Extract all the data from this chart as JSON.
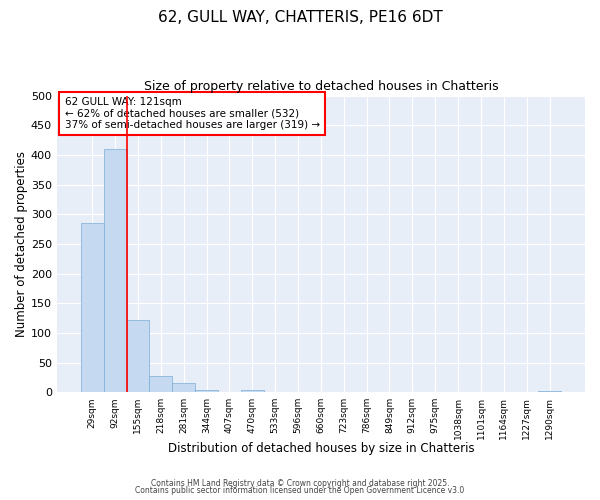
{
  "title": "62, GULL WAY, CHATTERIS, PE16 6DT",
  "subtitle": "Size of property relative to detached houses in Chatteris",
  "xlabel": "Distribution of detached houses by size in Chatteris",
  "ylabel": "Number of detached properties",
  "bar_labels": [
    "29sqm",
    "92sqm",
    "155sqm",
    "218sqm",
    "281sqm",
    "344sqm",
    "407sqm",
    "470sqm",
    "533sqm",
    "596sqm",
    "660sqm",
    "723sqm",
    "786sqm",
    "849sqm",
    "912sqm",
    "975sqm",
    "1038sqm",
    "1101sqm",
    "1164sqm",
    "1227sqm",
    "1290sqm"
  ],
  "bar_values": [
    285,
    410,
    122,
    27,
    15,
    3,
    0,
    3,
    0,
    0,
    0,
    0,
    0,
    0,
    0,
    0,
    0,
    0,
    0,
    0,
    2
  ],
  "bar_color": "#c5d9f0",
  "bar_edge_color": "#7badd4",
  "ylim": [
    0,
    500
  ],
  "yticks": [
    0,
    50,
    100,
    150,
    200,
    250,
    300,
    350,
    400,
    450,
    500
  ],
  "annotation_title": "62 GULL WAY: 121sqm",
  "annotation_line1": "← 62% of detached houses are smaller (532)",
  "annotation_line2": "37% of semi-detached houses are larger (319) →",
  "vline_x_index": 1,
  "footnote1": "Contains HM Land Registry data © Crown copyright and database right 2025.",
  "footnote2": "Contains public sector information licensed under the Open Government Licence v3.0",
  "plot_bg_color": "#e8eef8",
  "grid_color": "#ffffff",
  "title_fontsize": 11,
  "subtitle_fontsize": 9
}
